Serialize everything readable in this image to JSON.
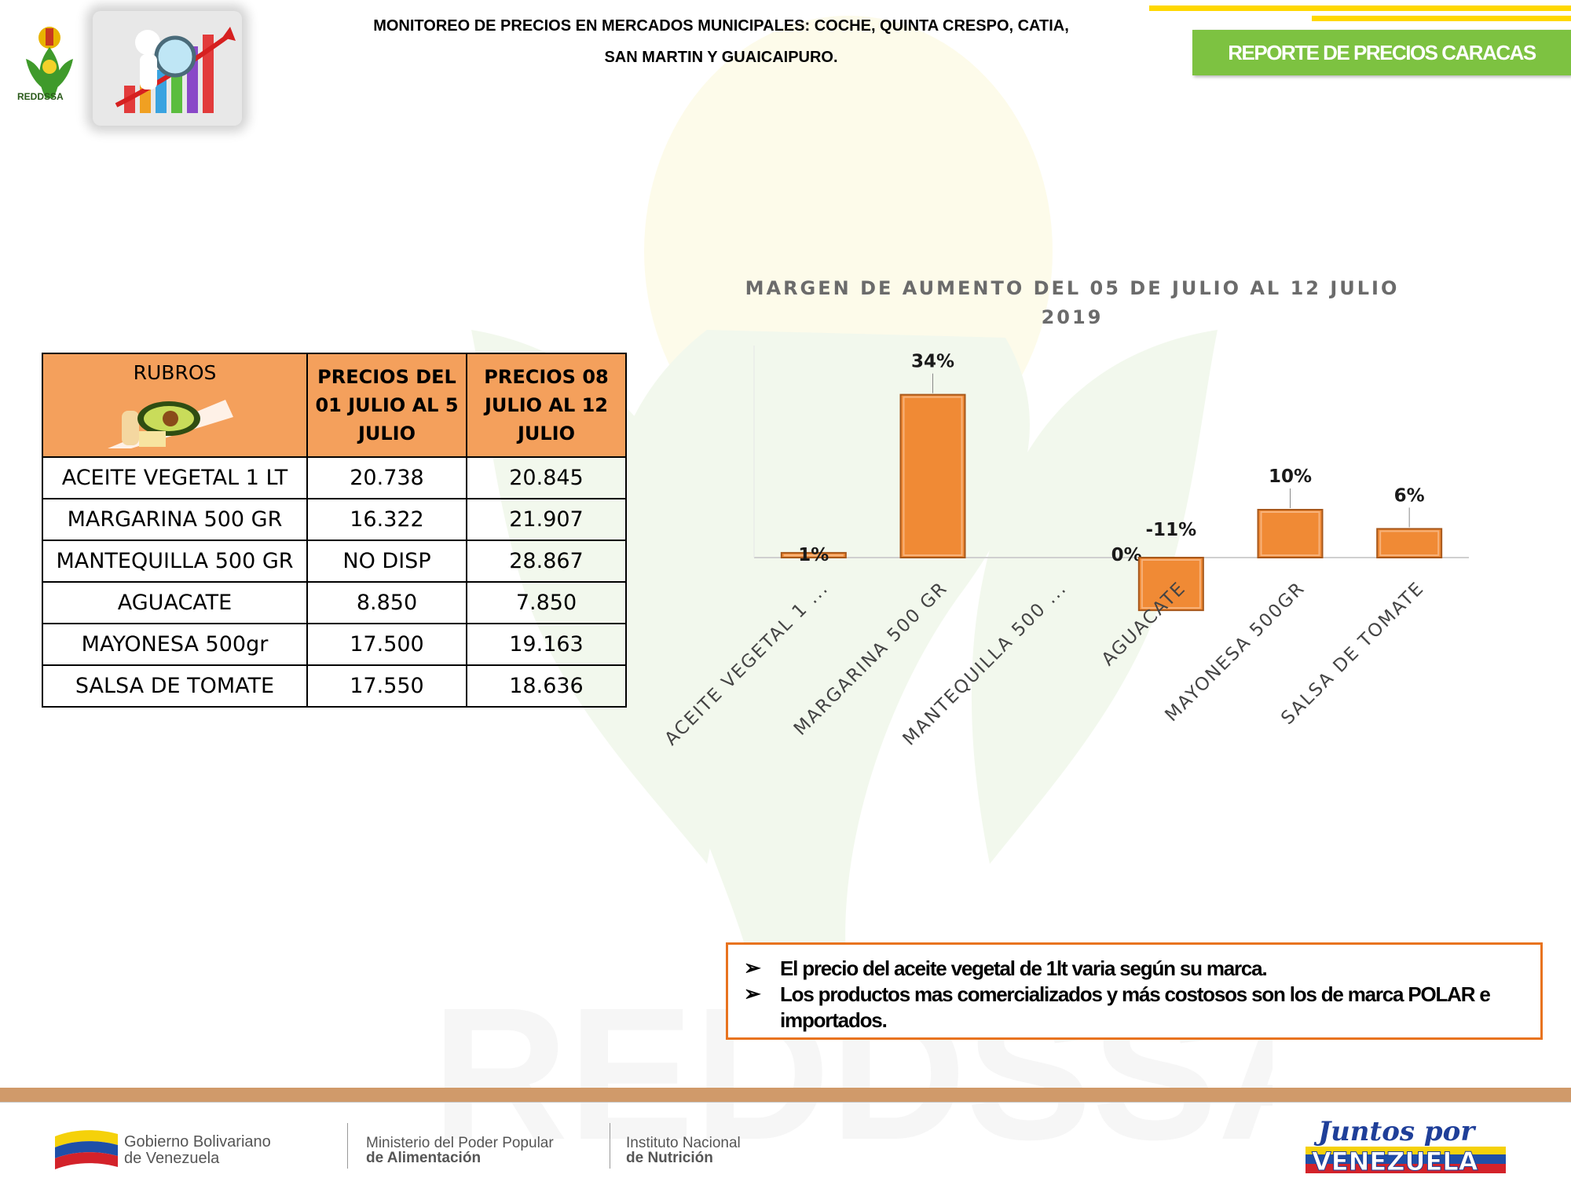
{
  "header": {
    "logo_text": "REDDSSA",
    "title_line1": "MONITOREO DE PRECIOS EN MERCADOS MUNICIPALES: COCHE, QUINTA CRESPO, CATIA,",
    "title_line2": "SAN MARTIN Y GUAICAIPURO.",
    "badge": "REPORTE DE PRECIOS CARACAS"
  },
  "watermark_text": "REDDSSA",
  "table": {
    "headers": [
      "RUBROS",
      "PRECIOS DEL 01 JULIO AL 5 JULIO",
      "PRECIOS 08 JULIO AL 12 JULIO"
    ],
    "rows": [
      {
        "item": "ACEITE VEGETAL 1 LT",
        "p1": "20.738",
        "p2": "20.845"
      },
      {
        "item": "MARGARINA 500 GR",
        "p1": "16.322",
        "p2": "21.907"
      },
      {
        "item": "MANTEQUILLA 500 GR",
        "p1": "NO DISP",
        "p2": "28.867"
      },
      {
        "item": "AGUACATE",
        "p1": "8.850",
        "p2": "7.850"
      },
      {
        "item": "MAYONESA 500gr",
        "p1": "17.500",
        "p2": "19.163"
      },
      {
        "item": "SALSA DE TOMATE",
        "p1": "17.550",
        "p2": "18.636"
      }
    ]
  },
  "chart_data": {
    "type": "bar",
    "title": "MARGEN DE AUMENTO DEL 05 DE JULIO AL 12 JULIO 2019",
    "categories": [
      "ACEITE VEGETAL 1 ...",
      "MARGARINA 500 GR",
      "MANTEQUILLA 500 ...",
      "AGUACATE",
      "MAYONESA 500GR",
      "SALSA DE TOMATE"
    ],
    "values": [
      1,
      34,
      0,
      -11,
      10,
      6
    ],
    "value_labels": [
      "1%",
      "34%",
      "0%",
      "-11%",
      "10%",
      "6%"
    ],
    "unit": "%",
    "color": "#f08a35",
    "ylim": [
      -15,
      40
    ],
    "grid": false,
    "legend": "none"
  },
  "notes": [
    "El precio del aceite vegetal de 1lt varia según su marca.",
    "Los productos mas comercializados y más costosos son los de marca POLAR e importados."
  ],
  "footer": {
    "gob_line1": "Gobierno Bolivariano",
    "gob_line2": "de Venezuela",
    "min_line1": "Ministerio del Poder Popular",
    "min_line2": "de Alimentación",
    "ins_line1": "Instituto Nacional",
    "ins_line2": "de Nutrición",
    "juntos": "Juntos por VENEZUELA"
  }
}
